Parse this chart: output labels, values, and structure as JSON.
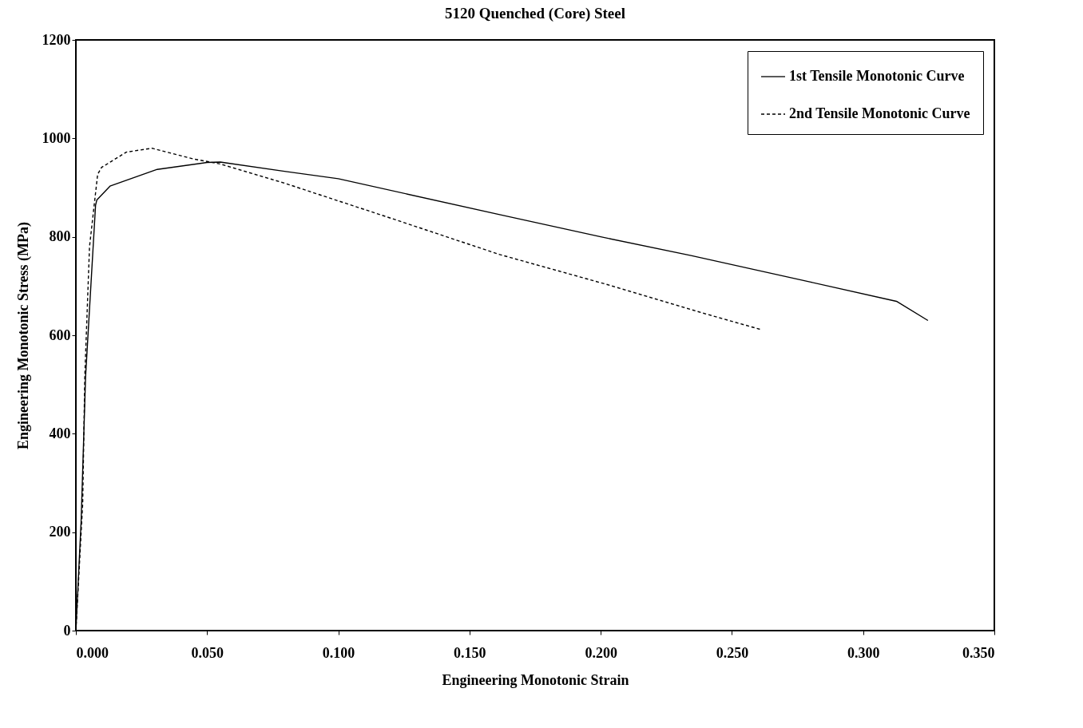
{
  "chart_data": {
    "type": "line",
    "title": "5120 Quenched (Core) Steel",
    "xlabel": "Engineering Monotonic Strain",
    "ylabel": "Engineering Monotonic Stress (MPa)",
    "xlim": [
      0,
      0.35
    ],
    "xticks": [
      {
        "value": 0,
        "label": "0.000"
      },
      {
        "value": 0.05,
        "label": "0.050"
      },
      {
        "value": 0.1,
        "label": "0.100"
      },
      {
        "value": 0.15,
        "label": "0.150"
      },
      {
        "value": 0.2,
        "label": "0.200"
      },
      {
        "value": 0.25,
        "label": "0.250"
      },
      {
        "value": 0.3,
        "label": "0.300"
      },
      {
        "value": 0.35,
        "label": "0.350"
      }
    ],
    "ylim": [
      0,
      1200
    ],
    "yticks": [
      0,
      200,
      400,
      600,
      800,
      1000,
      1200
    ],
    "grid": false,
    "legend": "top right",
    "series": [
      {
        "name": "1st Tensile Monotonic Curve",
        "color": "#000000",
        "line_style": "solid",
        "x": [
          0,
          0.002,
          0.0037,
          0.0075,
          0.008,
          0.013,
          0.031,
          0.05,
          0.055,
          0.0795,
          0.1,
          0.1615,
          0.2,
          0.2344,
          0.28,
          0.3127,
          0.3247
        ],
        "values": [
          0,
          222,
          516,
          864,
          875,
          903,
          937,
          951,
          952,
          933,
          918,
          845,
          800,
          762,
          708,
          669,
          630
        ]
      },
      {
        "name": "2nd Tensile Monotonic Curve",
        "color": "#000000",
        "line_style": "dashed",
        "x": [
          0,
          0.0026,
          0.0034,
          0.0052,
          0.0083,
          0.0098,
          0.0192,
          0.029,
          0.0347,
          0.045,
          0.055,
          0.0795,
          0.1205,
          0.1615,
          0.2025,
          0.239,
          0.2608
        ],
        "values": [
          0,
          258,
          516,
          780,
          927,
          941,
          972,
          980,
          972,
          958,
          948,
          909,
          837,
          764,
          703,
          645,
          612
        ]
      }
    ]
  }
}
